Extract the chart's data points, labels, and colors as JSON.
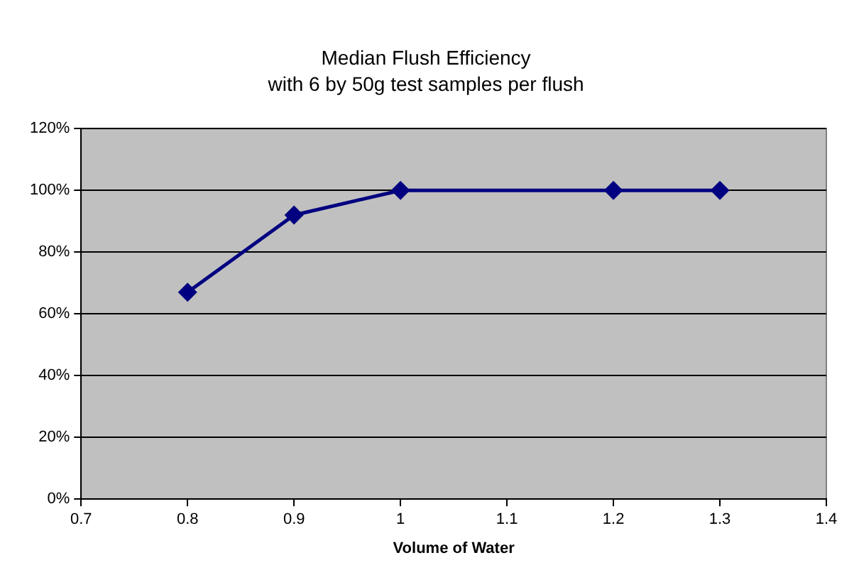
{
  "chart_data": {
    "type": "line",
    "title": "Median Flush Efficiency",
    "subtitle": "with 6 by 50g test samples per flush",
    "xlabel": "Volume of Water",
    "x": [
      0.8,
      0.9,
      1,
      1.2,
      1.3
    ],
    "series": [
      {
        "color": "#000080",
        "values": [
          67,
          92,
          100,
          100,
          100
        ]
      }
    ],
    "xlim": [
      0.7,
      1.4
    ],
    "xticks": [
      0.7,
      0.8,
      0.9,
      1,
      1.1,
      1.2,
      1.3,
      1.4
    ],
    "ylim": [
      0,
      120
    ],
    "yticks": [
      {
        "value": 0,
        "label": "0%"
      },
      {
        "value": 20,
        "label": "20%"
      },
      {
        "value": 40,
        "label": "40%"
      },
      {
        "value": 60,
        "label": "60%"
      },
      {
        "value": 80,
        "label": "80%"
      },
      {
        "value": 100,
        "label": "100%"
      },
      {
        "value": 120,
        "label": "120%"
      }
    ],
    "grid": "y",
    "legend": false,
    "marker": "diamond",
    "line_style": "solid"
  }
}
